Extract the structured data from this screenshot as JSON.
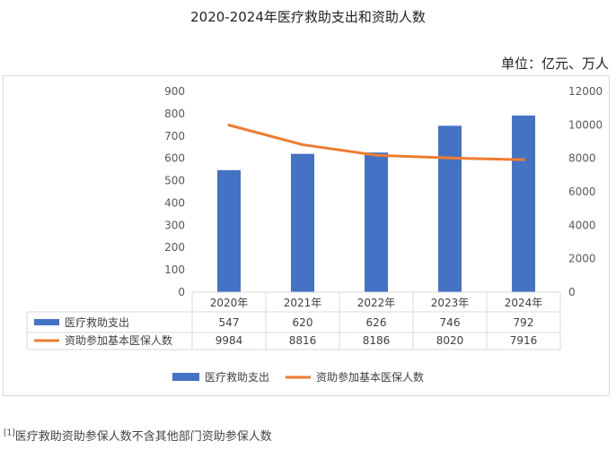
{
  "title": "2020-2024年医疗救助支出和资助人数",
  "unit_label": "单位：亿元、万人",
  "footnote": {
    "marker": "[1]",
    "text": "医疗救助资助参保人数不含其他部门资助参保人数"
  },
  "chart_data": {
    "type": "bar",
    "title": "2020-2024年医疗救助支出和资助人数",
    "categories": [
      "2020年",
      "2021年",
      "2022年",
      "2023年",
      "2024年"
    ],
    "y_left": {
      "min": 0,
      "max": 900,
      "ticks": [
        "0",
        "100",
        "200",
        "300",
        "400",
        "500",
        "600",
        "700",
        "800",
        "900"
      ]
    },
    "y_right": {
      "min": 0,
      "max": 12000,
      "ticks": [
        "0",
        "2000",
        "4000",
        "6000",
        "8000",
        "10000",
        "12000"
      ]
    },
    "series": [
      {
        "name": "医疗救助支出",
        "type": "bar",
        "axis": "left",
        "color": "#4472c4",
        "values": [
          547,
          620,
          626,
          746,
          792
        ],
        "labels": [
          "547",
          "620",
          "626",
          "746",
          "792"
        ]
      },
      {
        "name": "资助参加基本医保人数",
        "type": "line",
        "axis": "right",
        "color": "#ed7d31",
        "values": [
          9984,
          8816,
          8186,
          8020,
          7916
        ],
        "labels": [
          "9984",
          "8816",
          "8186",
          "8020",
          "7916"
        ]
      }
    ],
    "grid": false,
    "legend": "bottom",
    "data_table": true
  }
}
